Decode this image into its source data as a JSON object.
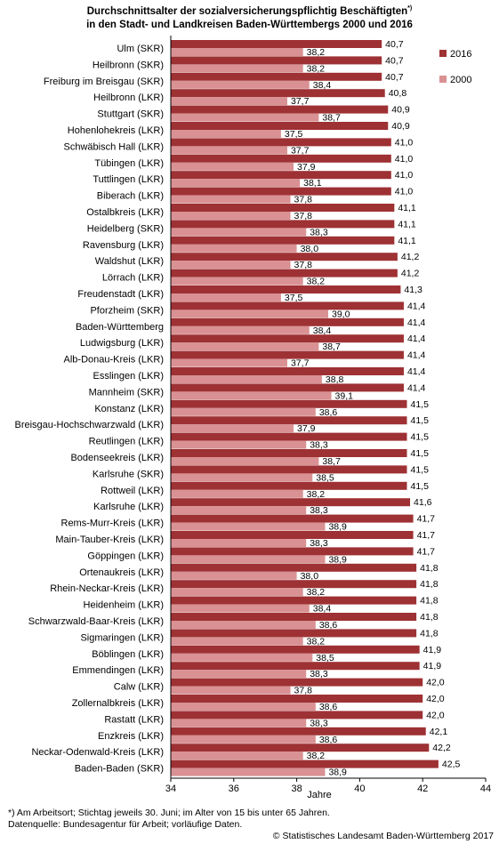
{
  "chart_data": {
    "type": "bar",
    "orientation": "horizontal",
    "title_line1": "Durchschnittsalter der sozialversicherungspflichtig Beschäftigten",
    "title_marker": "*)",
    "title_line2": "in den Stadt- und Landkreisen Baden-Württembergs 2000 und 2016",
    "xlabel": "Jahre",
    "xlim": [
      34,
      44
    ],
    "xticks": [
      "34",
      "36",
      "38",
      "40",
      "42",
      "44"
    ],
    "grid": false,
    "legend_position": "top-right",
    "colors": {
      "2016": "#9e3134",
      "2000": "#d99193"
    },
    "categories": [
      "Ulm (SKR)",
      "Heilbronn (SKR)",
      "Freiburg im Breisgau (SKR)",
      "Heilbronn (LKR)",
      "Stuttgart (SKR)",
      "Hohenlohekreis (LKR)",
      "Schwäbisch Hall (LKR)",
      "Tübingen (LKR)",
      "Tuttlingen (LKR)",
      "Biberach (LKR)",
      "Ostalbkreis (LKR)",
      "Heidelberg (SKR)",
      "Ravensburg (LKR)",
      "Waldshut (LKR)",
      "Lörrach (LKR)",
      "Freudenstadt (LKR)",
      "Pforzheim (SKR)",
      "Baden-Württemberg",
      "Ludwigsburg (LKR)",
      "Alb-Donau-Kreis (LKR)",
      "Esslingen (LKR)",
      "Mannheim (SKR)",
      "Konstanz (LKR)",
      "Breisgau-Hochschwarzwald (LKR)",
      "Reutlingen (LKR)",
      "Bodenseekreis (LKR)",
      "Karlsruhe (SKR)",
      "Rottweil (LKR)",
      "Karlsruhe (LKR)",
      "Rems-Murr-Kreis (LKR)",
      "Main-Tauber-Kreis (LKR)",
      "Göppingen (LKR)",
      "Ortenaukreis (LKR)",
      "Rhein-Neckar-Kreis (LKR)",
      "Heidenheim (LKR)",
      "Schwarzwald-Baar-Kreis  (LKR)",
      "Sigmaringen (LKR)",
      "Böblingen (LKR)",
      "Emmendingen (LKR)",
      "Calw (LKR)",
      "Zollernalbkreis (LKR)",
      "Rastatt (LKR)",
      "Enzkreis (LKR)",
      "Neckar-Odenwald-Kreis (LKR)",
      "Baden-Baden (SKR)"
    ],
    "series": [
      {
        "name": "2016",
        "values": [
          40.7,
          40.7,
          40.7,
          40.8,
          40.9,
          40.9,
          41.0,
          41.0,
          41.0,
          41.0,
          41.1,
          41.1,
          41.1,
          41.2,
          41.2,
          41.3,
          41.4,
          41.4,
          41.4,
          41.4,
          41.4,
          41.4,
          41.5,
          41.5,
          41.5,
          41.5,
          41.5,
          41.5,
          41.6,
          41.7,
          41.7,
          41.7,
          41.8,
          41.8,
          41.8,
          41.8,
          41.8,
          41.9,
          41.9,
          42.0,
          42.0,
          42.0,
          42.1,
          42.2,
          42.5
        ]
      },
      {
        "name": "2000",
        "values": [
          38.2,
          38.2,
          38.4,
          37.7,
          38.7,
          37.5,
          37.7,
          37.9,
          38.1,
          37.8,
          37.8,
          38.3,
          38.0,
          37.8,
          38.2,
          37.5,
          39.0,
          38.4,
          38.7,
          37.7,
          38.8,
          39.1,
          38.6,
          37.9,
          38.3,
          38.7,
          38.5,
          38.2,
          38.3,
          38.9,
          38.3,
          38.9,
          38.0,
          38.2,
          38.4,
          38.6,
          38.2,
          38.5,
          38.3,
          37.8,
          38.6,
          38.3,
          38.6,
          38.2,
          38.9
        ]
      }
    ]
  },
  "footnote": {
    "line1": "*) Am Arbeitsort; Stichtag jeweils 30. Juni; im Alter von 15 bis unter 65 Jahren.",
    "line2": "Datenquelle: Bundesagentur für Arbeit; vorläufige Daten.",
    "copyright": "© Statistisches Landesamt Baden-Württemberg 2017"
  }
}
